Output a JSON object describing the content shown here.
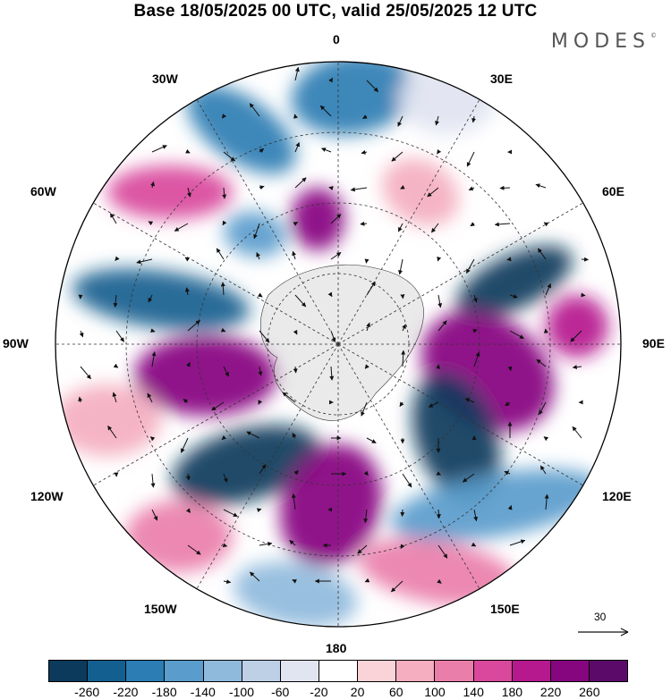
{
  "title": "Base 18/05/2025 00 UTC, valid 25/05/2025 12 UTC",
  "brand": {
    "name": "MODES",
    "mark": "©"
  },
  "longitude_labels": [
    "0",
    "30E",
    "60E",
    "90E",
    "120E",
    "150E",
    "180",
    "150W",
    "120W",
    "90W",
    "60W",
    "30W"
  ],
  "reference_vector": {
    "value": "30"
  },
  "colorbar": {
    "colors": [
      "#0b3a5c",
      "#135f8f",
      "#2b7db3",
      "#5a9ccc",
      "#8fbadc",
      "#bdd0e6",
      "#e1e4f1",
      "#ffffff",
      "#f9d3d7",
      "#f4aec0",
      "#ea7eaa",
      "#d9489c",
      "#b6188e",
      "#86067f",
      "#5b0a6a"
    ],
    "tick_labels": [
      "-260",
      "-220",
      "-180",
      "-140",
      "-100",
      "-60",
      "-20",
      "20",
      "60",
      "100",
      "140",
      "180",
      "220",
      "260"
    ]
  }
}
